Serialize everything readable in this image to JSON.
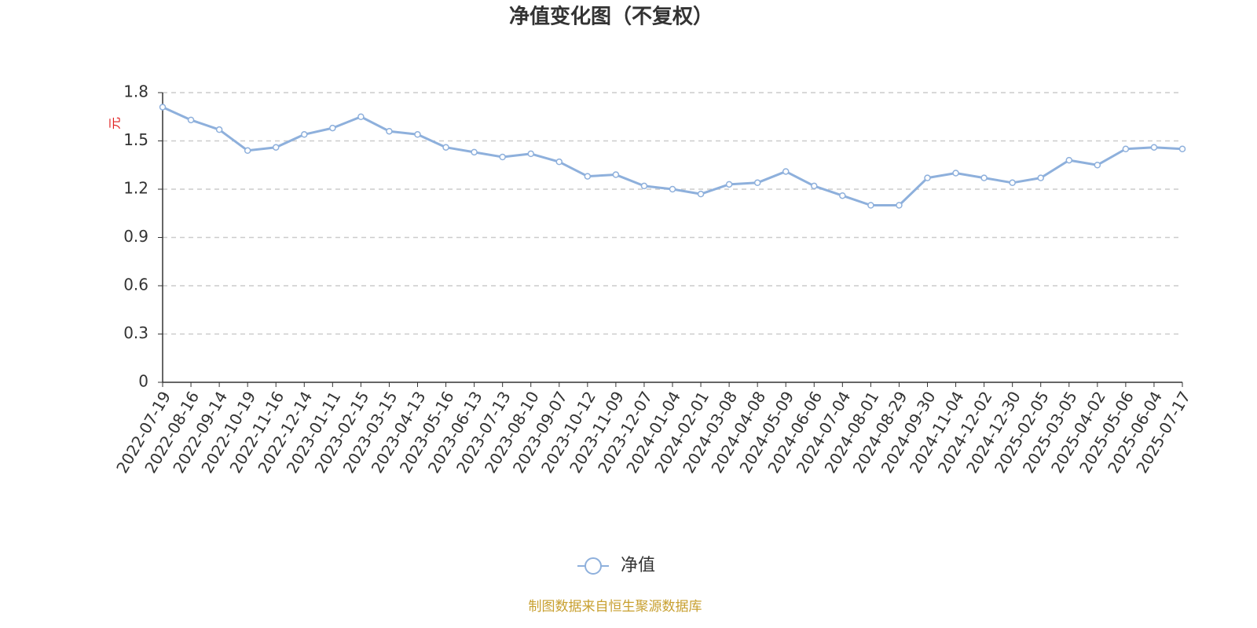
{
  "chart_data": {
    "type": "line",
    "title": "净值变化图（不复权）",
    "y_label": "元",
    "source": "制图数据来自恒生聚源数据库",
    "categories": [
      "2022-07-19",
      "2022-08-16",
      "2022-09-14",
      "2022-10-19",
      "2022-11-16",
      "2022-12-14",
      "2023-01-11",
      "2023-02-15",
      "2023-03-15",
      "2023-04-13",
      "2023-05-16",
      "2023-06-13",
      "2023-07-13",
      "2023-08-10",
      "2023-09-07",
      "2023-10-12",
      "2023-11-09",
      "2023-12-07",
      "2024-01-04",
      "2024-02-01",
      "2024-03-08",
      "2024-04-08",
      "2024-05-09",
      "2024-06-06",
      "2024-07-04",
      "2024-08-01",
      "2024-08-29",
      "2024-09-30",
      "2024-11-04",
      "2024-12-02",
      "2024-12-30",
      "2025-02-05",
      "2025-03-05",
      "2025-04-02",
      "2025-05-06",
      "2025-06-04",
      "2025-07-17"
    ],
    "series": [
      {
        "name": "净值",
        "color": "#8eb0dc",
        "values": [
          1.71,
          1.63,
          1.57,
          1.44,
          1.46,
          1.54,
          1.58,
          1.65,
          1.56,
          1.54,
          1.46,
          1.43,
          1.4,
          1.42,
          1.37,
          1.28,
          1.29,
          1.22,
          1.2,
          1.17,
          1.23,
          1.24,
          1.31,
          1.22,
          1.16,
          1.1,
          1.1,
          1.27,
          1.3,
          1.27,
          1.24,
          1.27,
          1.38,
          1.35,
          1.45,
          1.46,
          1.45
        ]
      }
    ],
    "ylim": [
      0,
      1.8
    ],
    "yticks": [
      0,
      0.3,
      0.6,
      0.9,
      1.2,
      1.5,
      1.8
    ],
    "grid": true,
    "legend": "bottom"
  }
}
